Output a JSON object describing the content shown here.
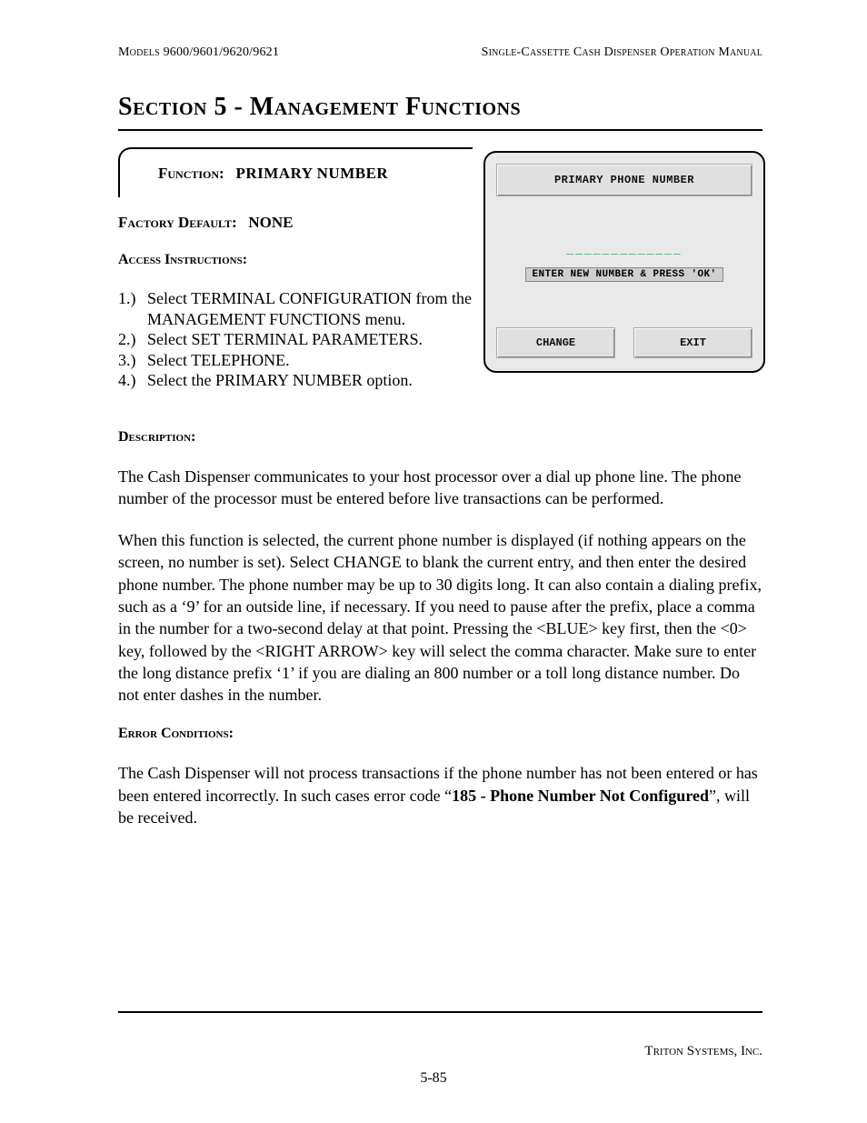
{
  "header": {
    "left": "Models 9600/9601/9620/9621",
    "right": "Single-Cassette Cash Dispenser Operation Manual"
  },
  "section_title": "Section 5 - Management Functions",
  "function_card": {
    "label_key": "Function:",
    "label_value": "PRIMARY NUMBER"
  },
  "factory_default": {
    "label": "Factory Default:",
    "value": "NONE"
  },
  "access_heading": "Access Instructions:",
  "instructions": [
    {
      "num": "1.)",
      "text": "Select TERMINAL CONFIGURATION from the MANAGEMENT FUNCTIONS menu."
    },
    {
      "num": "2.)",
      "text": "Select SET TERMINAL PARAMETERS."
    },
    {
      "num": "3.)",
      "text": "Select TELEPHONE."
    },
    {
      "num": "4.)",
      "text": "Select the PRIMARY NUMBER option."
    }
  ],
  "description_heading": "Description:",
  "description_paras": [
    "The Cash Dispenser communicates to your host processor over a dial up phone line.  The phone number of the processor must be entered before live transactions can be performed.",
    "When this function is selected, the current phone number is displayed (if nothing appears on the screen, no number is set).  Select CHANGE to blank the current entry, and then enter the desired phone number.  The phone number may be up to 30 digits long.  It can also contain a dialing prefix, such as a ‘9’ for an outside line, if necessary.  If you need to pause after the prefix, place a comma in the number for a two-second delay at that point.  Pressing the <BLUE> key first, then the <0> key, followed by the <RIGHT ARROW> key will select the comma character.  Make sure to enter the long distance prefix ‘1’ if you are dialing an 800 number or a toll long distance number.  Do not enter dashes in the number."
  ],
  "error_heading": "Error Conditions:",
  "error_para_pre": "The Cash Dispenser will not process transactions if the phone number has not been entered or has been entered incorrectly. In such cases error code “",
  "error_code_bold": "185 - Phone Number Not Configured",
  "error_para_post": "”, will be received.",
  "atm": {
    "title": "PRIMARY PHONE NUMBER",
    "dashes": "_____________",
    "prompt": "ENTER NEW NUMBER & PRESS 'OK'",
    "change_label": "CHANGE",
    "exit_label": "EXIT",
    "colors": {
      "panel_bg": "#e9e9e9",
      "field_bg": "#e0e0e0",
      "dash_color": "#0aa04a",
      "border": "#000000"
    }
  },
  "footer": {
    "company": "Triton Systems, Inc.",
    "page_number": "5-85"
  }
}
